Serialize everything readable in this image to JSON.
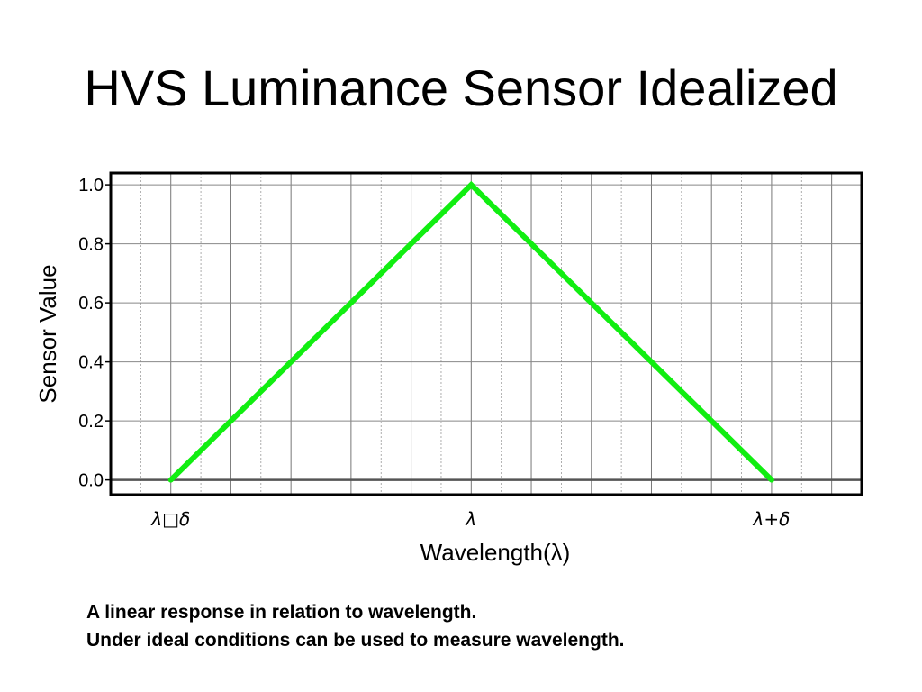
{
  "slide": {
    "title": "HVS Luminance Sensor Idealized",
    "captions": [
      "A linear response in relation to wavelength.",
      "Under ideal conditions can be used to measure wavelength."
    ]
  },
  "chart_data": {
    "type": "line",
    "xlabel": "Wavelength(λ)",
    "ylabel": "Sensor Value",
    "x_ticks": [
      {
        "value": -1,
        "label": "λ□δ"
      },
      {
        "value": 0,
        "label": "λ"
      },
      {
        "value": 1,
        "label": "λ+δ"
      }
    ],
    "y_ticks": [
      0.0,
      0.2,
      0.4,
      0.6,
      0.8,
      1.0
    ],
    "y_tick_labels": [
      "0.0",
      "0.2",
      "0.4",
      "0.6",
      "0.8",
      "1.0"
    ],
    "xlim": [
      -1.2,
      1.3
    ],
    "ylim": [
      -0.05,
      1.04
    ],
    "grid": true,
    "series": [
      {
        "color": "#11ee11",
        "x": [
          -1,
          0,
          1
        ],
        "y": [
          0.0,
          1.0,
          0.0
        ]
      }
    ]
  }
}
